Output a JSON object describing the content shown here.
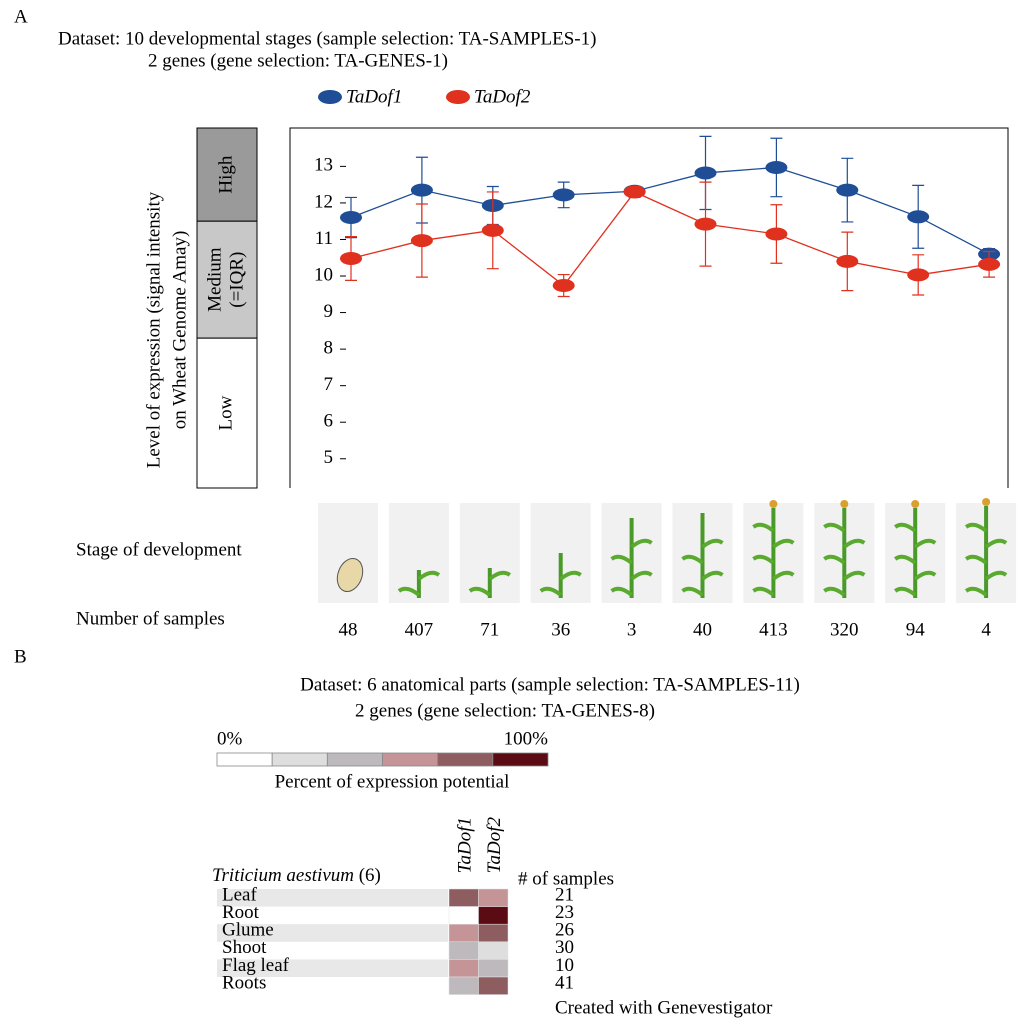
{
  "panel_labels": [
    "A",
    "B"
  ],
  "chart_data": [
    {
      "type": "line",
      "title_lines": [
        "Dataset: 10 developmental stages (sample selection: TA-SAMPLES-1)",
        "2 genes (gene selection: TA-GENES-1)"
      ],
      "y_label_lines": [
        "Level of expression (signal intensity",
        "on Wheat Genome Amay)"
      ],
      "levels": [
        {
          "label_lines": [
            "High"
          ],
          "range": [
            11.5,
            14.05
          ],
          "color": "#9a9a9a",
          "text_color": "#ffffff"
        },
        {
          "label_lines": [
            "Medium",
            "(=IQR)"
          ],
          "range": [
            8.3,
            11.5
          ],
          "color": "#c8c8c8",
          "text_color": "#000000"
        },
        {
          "label_lines": [
            "Low"
          ],
          "range": [
            4.2,
            8.3
          ],
          "color": "#ffffff",
          "text_color": "#000000"
        }
      ],
      "ylim": [
        4.2,
        14.05
      ],
      "yticks": [
        5,
        6,
        7,
        8,
        9,
        10,
        11,
        12,
        13
      ],
      "stage_label": "Stage of development",
      "count_label": "Number of samples",
      "categories": [
        48,
        407,
        71,
        36,
        3,
        40,
        413,
        320,
        94,
        4
      ],
      "series": [
        {
          "name": "TaDof1",
          "color": "#1f4e96",
          "values": [
            11.6,
            12.35,
            11.93,
            12.22,
            12.32,
            12.82,
            12.97,
            12.35,
            11.62,
            10.6
          ],
          "errors": [
            0.55,
            0.9,
            0.52,
            0.35,
            0.12,
            1.0,
            0.8,
            0.87,
            0.86,
            0.15
          ]
        },
        {
          "name": "TaDof2",
          "color": "#e0301e",
          "values": [
            10.48,
            10.97,
            11.25,
            9.74,
            12.3,
            11.42,
            11.15,
            10.4,
            10.03,
            10.32
          ],
          "errors": [
            0.6,
            1.0,
            1.05,
            0.3,
            0.15,
            1.15,
            0.8,
            0.8,
            0.55,
            0.35
          ]
        }
      ]
    },
    {
      "type": "heatmap",
      "title_lines": [
        "Dataset: 6 anatomical parts (sample selection: TA-SAMPLES-11)",
        "2 genes (gene selection: TA-GENES-8)"
      ],
      "colorbar_ticks": [
        {
          "value": 0,
          "label": "0%"
        },
        {
          "value": 100,
          "label": "100%"
        }
      ],
      "colorbar_colors": [
        "#ffffff",
        "#dedede",
        "#bdb9bc",
        "#c49496",
        "#8e5d60",
        "#5a0b14"
      ],
      "colorbar_label": "Percent of expression potential",
      "group": "Triticium aestivum",
      "group_count": "(6)",
      "count_label": "# of samples",
      "categories": [
        "Leaf",
        "Root",
        "Glume",
        "Shoot",
        "Flag leaf",
        "Roots"
      ],
      "counts": [
        21,
        23,
        26,
        30,
        10,
        41
      ],
      "series": [
        {
          "name": "TaDof1",
          "values": [
            75,
            5,
            60,
            35,
            60,
            35
          ]
        },
        {
          "name": "TaDof2",
          "values": [
            55,
            95,
            75,
            20,
            35,
            75
          ]
        }
      ],
      "footer": "Created with Genevestigator"
    }
  ]
}
